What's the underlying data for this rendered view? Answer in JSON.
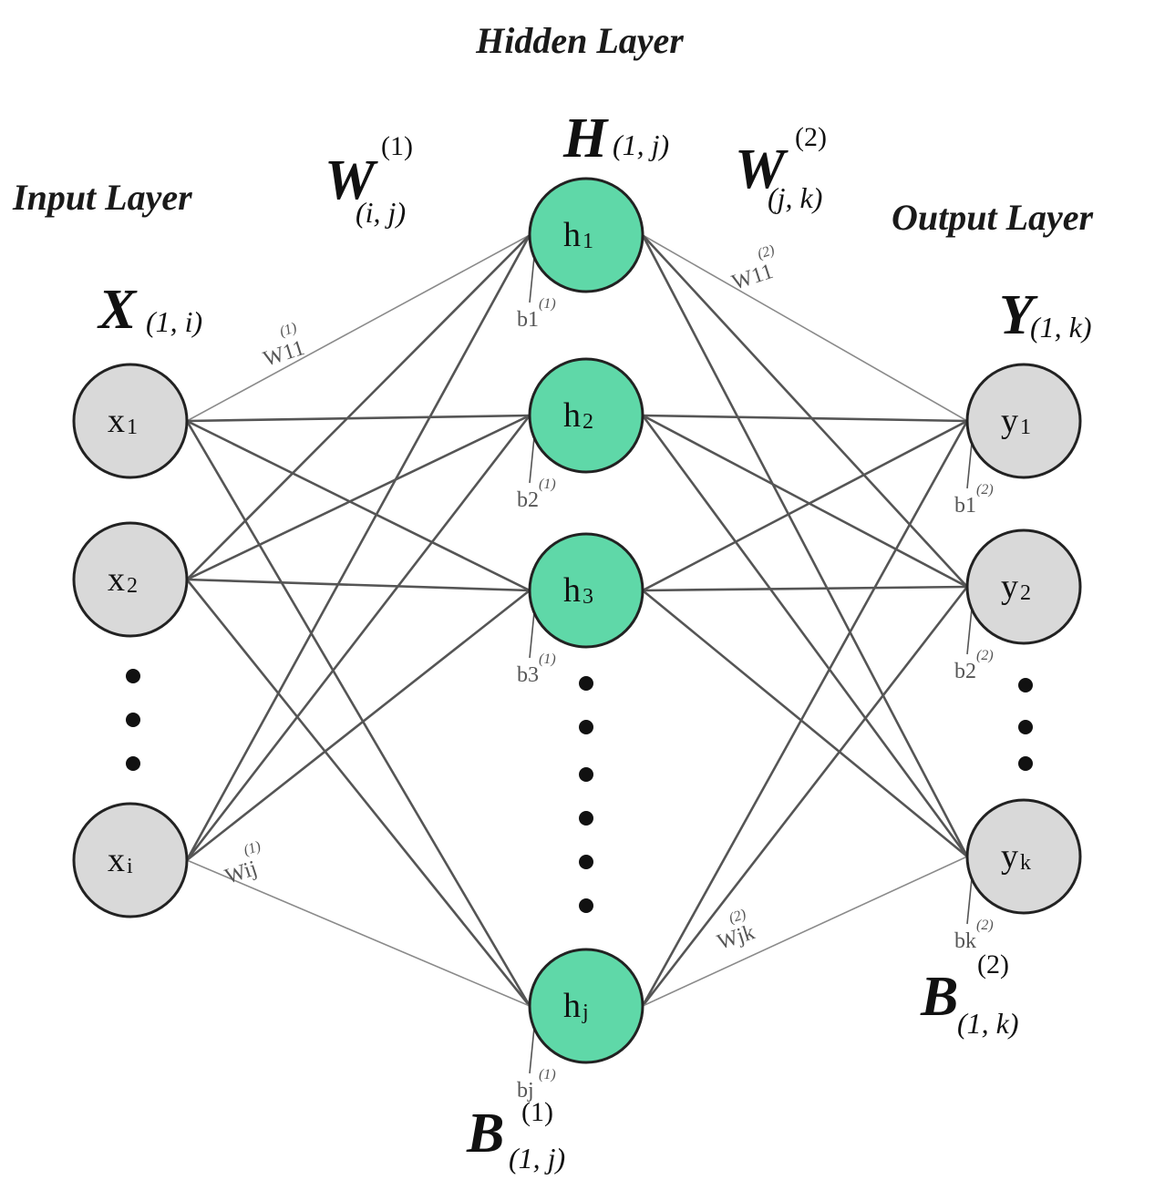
{
  "titles": {
    "hidden": "Hidden Layer",
    "input": "Input Layer",
    "output": "Output Layer"
  },
  "symbols": {
    "X": {
      "main": "X",
      "sub": "(1, i)"
    },
    "H": {
      "main": "H",
      "sub": "(1, j)"
    },
    "Y": {
      "main": "Y",
      "sub": "(1, k)"
    },
    "W1": {
      "main": "W",
      "sup": "(1)",
      "sub": "(i, j)"
    },
    "W2": {
      "main": "W",
      "sup": "(2)",
      "sub": "(j, k)"
    },
    "B1": {
      "main": "B",
      "sup": "(1)",
      "sub": "(1, j)"
    },
    "B2": {
      "main": "B",
      "sup": "(2)",
      "sub": "(1, k)"
    }
  },
  "nodes": {
    "input": [
      {
        "id": "x1",
        "base": "x",
        "sub": "1"
      },
      {
        "id": "x2",
        "base": "x",
        "sub": "2"
      },
      {
        "id": "xi",
        "base": "x",
        "sub": "i"
      }
    ],
    "hidden": [
      {
        "id": "h1",
        "base": "h",
        "sub": "1",
        "bias": "b1",
        "bias_sup": "(1)"
      },
      {
        "id": "h2",
        "base": "h",
        "sub": "2",
        "bias": "b2",
        "bias_sup": "(1)"
      },
      {
        "id": "h3",
        "base": "h",
        "sub": "3",
        "bias": "b3",
        "bias_sup": "(1)"
      },
      {
        "id": "hj",
        "base": "h",
        "sub": "j",
        "bias": "bj",
        "bias_sup": "(1)"
      }
    ],
    "output": [
      {
        "id": "y1",
        "base": "y",
        "sub": "1",
        "bias": "b1",
        "bias_sup": "(2)"
      },
      {
        "id": "y2",
        "base": "y",
        "sub": "2",
        "bias": "b2",
        "bias_sup": "(2)"
      },
      {
        "id": "yk",
        "base": "y",
        "sub": "k",
        "bias": "bk",
        "bias_sup": "(2)"
      }
    ]
  },
  "weights": {
    "w11_1": {
      "base": "W11",
      "sup": "(1)"
    },
    "wij_1": {
      "base": "Wij",
      "sup": "(1)"
    },
    "w11_2": {
      "base": "W11",
      "sup": "(2)"
    },
    "wjk_2": {
      "base": "Wjk",
      "sup": "(2)"
    }
  },
  "colors": {
    "input_node": "#d9d9d9",
    "hidden_node": "#5fd8a8",
    "output_node": "#d9d9d9",
    "node_stroke": "#222222",
    "edge": "#555555",
    "edge_light": "#8a8a8a"
  }
}
